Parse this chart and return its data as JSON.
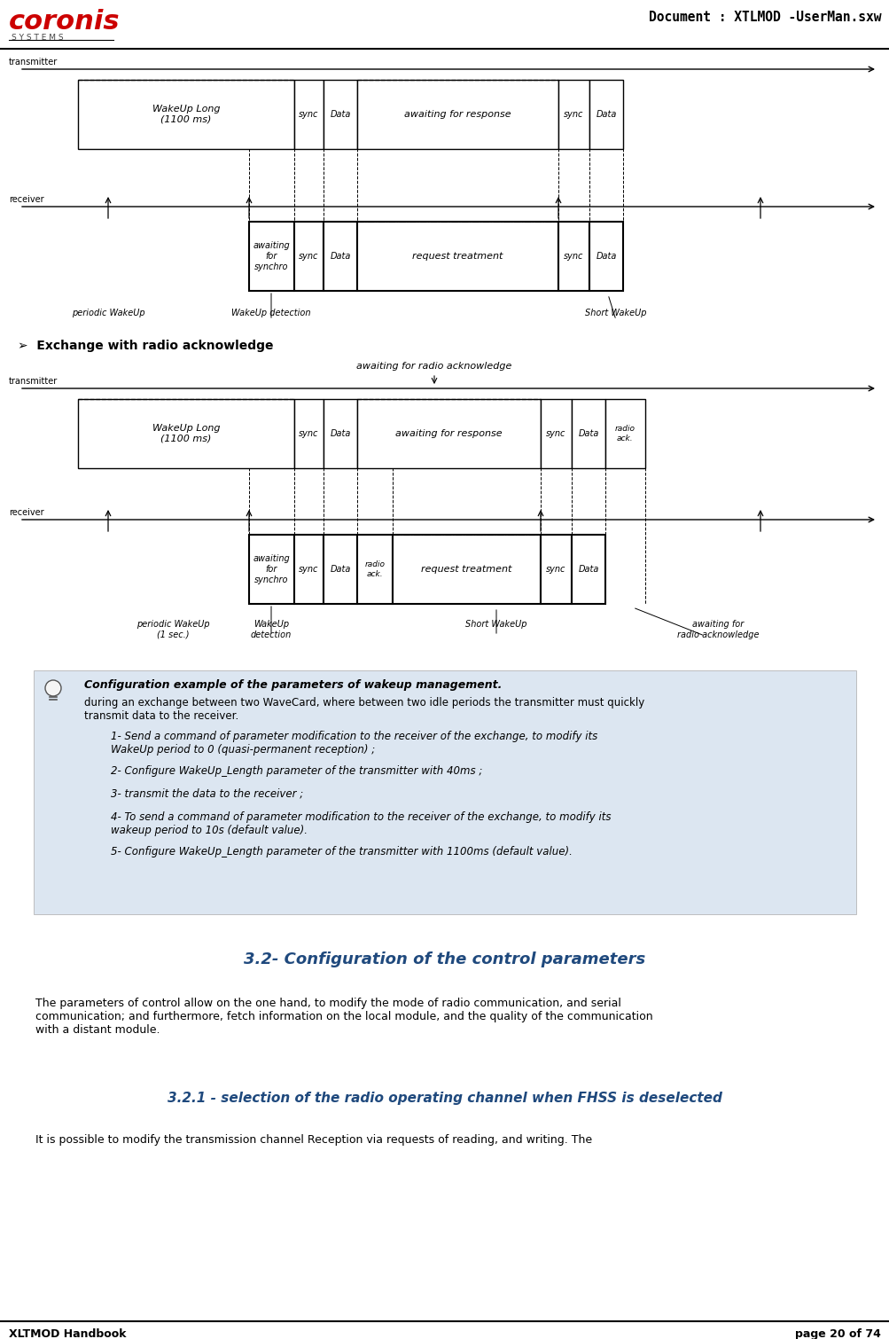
{
  "doc_title": "Document : XTLMOD -UserMan.sxw",
  "footer_left": "XLTMOD Handbook",
  "footer_right": "page 20 of 74",
  "section_header": "➢  Exchange with radio acknowledge",
  "note_title": "Configuration example of the parameters of wakeup management.",
  "note_body1": "during an exchange between two WaveCard, where between two idle periods the transmitter must quickly\ntransmit data to the receiver.",
  "note_items": [
    "1- Send a command of parameter modification to the receiver of the exchange, to modify its\nWakeUp period to 0 (quasi-permanent reception) ;",
    "2- Configure WakeUp_Length parameter of the transmitter with 40ms ;",
    "3- transmit the data to the receiver ;",
    "4- To send a command of parameter modification to the receiver of the exchange, to modify its\nwakeup period to 10s (default value).",
    "5- Configure WakeUp_Length parameter of the transmitter with 1100ms (default value)."
  ],
  "section32": "3.2- Configuration of the control parameters",
  "body32": "The parameters of control allow on the one hand, to modify the mode of radio communication, and serial\ncommunication; and furthermore, fetch information on the local module, and the quality of the communication\nwith a distant module.",
  "section321": "3.2.1 - selection of the radio operating channel when FHSS is deselected",
  "body321": "It is possible to modify the transmission channel Reception via requests of reading, and writing. The",
  "bg_color": "#ffffff",
  "note_bg": "#dce6f1",
  "coronis_color": "#cc0000",
  "title_color": "#1f497d"
}
